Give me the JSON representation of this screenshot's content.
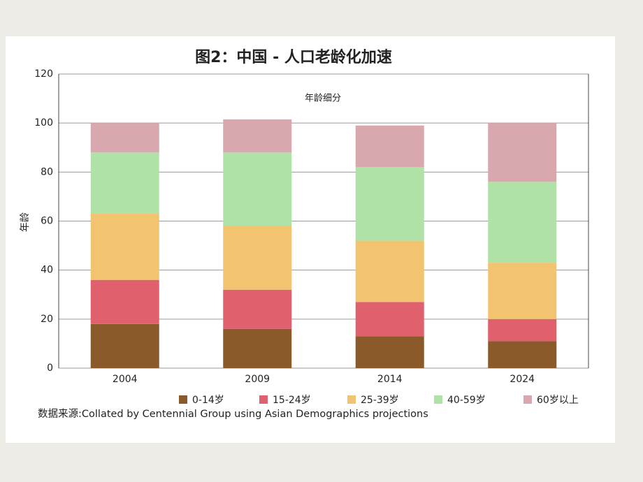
{
  "chart_data": {
    "type": "stacked_bar",
    "title": "图2：中国 - 人口老龄化加速",
    "subtitle": "年龄细分",
    "y_label": "年龄",
    "source": "数据来源:Collated by Centennial Group using Asian Demographics projections",
    "categories": [
      "2004",
      "2009",
      "2014",
      "2024"
    ],
    "series": [
      {
        "name": "0-14岁",
        "color": "#8b5a2b",
        "values": [
          18,
          16,
          13,
          11
        ]
      },
      {
        "name": "15-24岁",
        "color": "#e0606e",
        "values": [
          18,
          16,
          14,
          9
        ]
      },
      {
        "name": "25-39岁",
        "color": "#f2c470",
        "values": [
          27,
          26,
          25,
          23
        ]
      },
      {
        "name": "40-59岁",
        "color": "#b0e2a8",
        "values": [
          25,
          30,
          30,
          33
        ]
      },
      {
        "name": "60岁以上",
        "color": "#d9a8ae",
        "values": [
          12,
          13.5,
          17,
          24
        ]
      }
    ],
    "ylim": [
      0,
      120
    ],
    "yticks": [
      0,
      20,
      40,
      60,
      80,
      100,
      120
    ],
    "grid": true
  }
}
